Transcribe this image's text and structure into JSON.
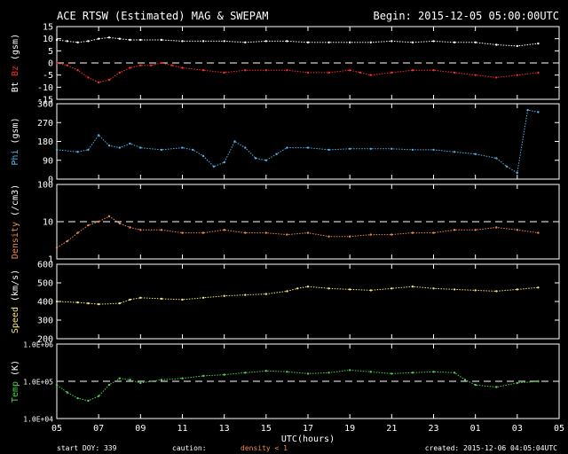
{
  "header": {
    "title": "ACE RTSW (Estimated) MAG & SWEPAM",
    "begin": "Begin: 2015-12-05 05:00:00UTC"
  },
  "footer": {
    "start": "start DOY: 339",
    "caution": "caution:",
    "caution_note": "density < 1",
    "created": "created: 2015-12-06 04:05:04UTC"
  },
  "colors": {
    "bt": "#ffffff",
    "bz": "#ff2a2a",
    "phi": "#4fb4e8",
    "density": "#f08a4b",
    "speed": "#f5e87a",
    "temp": "#4cd44c",
    "caution": "#f08a4b"
  },
  "chart_data": {
    "type": "scatter",
    "xlabel": "UTC(hours)",
    "x_ticks": [
      "05",
      "07",
      "09",
      "11",
      "13",
      "15",
      "17",
      "19",
      "21",
      "23",
      "01",
      "03",
      "05"
    ],
    "panels": [
      {
        "id": "mag",
        "ylabel": [
          {
            "text": "Bt",
            "color": "#ffffff"
          },
          {
            "text": "Bz",
            "color": "#ff2a2a"
          }
        ],
        "ylabel_unit": "(gsm)",
        "scale": "linear",
        "ylim": [
          -15,
          15
        ],
        "yticks": [
          "15",
          "10",
          "5",
          "0",
          "-5",
          "-10",
          "-15"
        ],
        "ytick_values": [
          15,
          10,
          5,
          0,
          -5,
          -10,
          -15
        ],
        "dashed_at": 0,
        "series": [
          {
            "name": "Bt",
            "color": "#ffffff",
            "x": [
              0,
              0.5,
              1,
              1.5,
              2,
              2.5,
              3,
              3.5,
              4,
              5,
              6,
              7,
              8,
              9,
              10,
              11,
              12,
              13,
              14,
              15,
              16,
              17,
              18,
              19,
              20,
              21,
              22,
              23
            ],
            "y": [
              9.5,
              9,
              8.5,
              9,
              10,
              10.5,
              10,
              9.5,
              9.5,
              9.5,
              9,
              9,
              9,
              8.5,
              9,
              9,
              8.5,
              8.5,
              8.5,
              8.5,
              9,
              8.5,
              9,
              8.5,
              8.5,
              7.5,
              7,
              8
            ]
          },
          {
            "name": "Bz",
            "color": "#ff2a2a",
            "x": [
              0,
              0.5,
              1,
              1.5,
              2,
              2.5,
              3,
              3.5,
              4,
              4.5,
              5,
              5.5,
              6,
              7,
              8,
              9,
              10,
              11,
              12,
              13,
              14,
              14.5,
              15,
              16,
              17,
              18,
              19,
              20,
              21,
              22,
              23
            ],
            "y": [
              0,
              -1,
              -3,
              -6,
              -8,
              -7,
              -4,
              -2,
              -1,
              -1,
              0,
              -1,
              -2,
              -3,
              -4,
              -3,
              -3,
              -3,
              -4,
              -4,
              -3,
              -4,
              -5,
              -4,
              -3,
              -3,
              -4,
              -5,
              -6,
              -5,
              -4
            ]
          }
        ]
      },
      {
        "id": "phi",
        "ylabel": [
          {
            "text": "Phi",
            "color": "#4fb4e8"
          }
        ],
        "ylabel_unit": "(gsm)",
        "scale": "linear",
        "ylim": [
          0,
          360
        ],
        "yticks": [
          "360",
          "270",
          "180",
          "90",
          "0"
        ],
        "ytick_values": [
          360,
          270,
          180,
          90,
          0
        ],
        "dashed_at": null,
        "series": [
          {
            "name": "Phi",
            "color": "#4fb4e8",
            "x": [
              0,
              1,
              1.5,
              2,
              2.5,
              3,
              3.5,
              4,
              5,
              6,
              6.5,
              7,
              7.5,
              8,
              8.5,
              9,
              9.5,
              10,
              10.5,
              11,
              12,
              13,
              14,
              15,
              16,
              17,
              18,
              19,
              20,
              21,
              21.5,
              22,
              22.5,
              23
            ],
            "y": [
              140,
              130,
              140,
              210,
              160,
              150,
              170,
              150,
              140,
              150,
              140,
              110,
              60,
              80,
              180,
              150,
              100,
              90,
              120,
              150,
              150,
              140,
              145,
              145,
              145,
              140,
              140,
              130,
              120,
              100,
              60,
              30,
              330,
              320
            ]
          }
        ]
      },
      {
        "id": "density",
        "ylabel": [
          {
            "text": "Density",
            "color": "#f08a4b"
          }
        ],
        "ylabel_unit": "(/cm3)",
        "scale": "log",
        "ylim": [
          1,
          100
        ],
        "yticks": [
          "100",
          "10",
          "1"
        ],
        "ytick_values": [
          100,
          10,
          1
        ],
        "dashed_at": 10,
        "series": [
          {
            "name": "Density",
            "color": "#f08a4b",
            "x": [
              0,
              0.5,
              1,
              1.5,
              2,
              2.5,
              3,
              3.5,
              4,
              5,
              6,
              7,
              8,
              9,
              10,
              11,
              12,
              13,
              14,
              15,
              16,
              17,
              18,
              19,
              20,
              21,
              22,
              23
            ],
            "y": [
              2,
              3,
              5,
              8,
              10,
              14,
              9,
              7,
              6,
              6,
              5,
              5,
              6,
              5,
              5,
              4.5,
              5,
              4,
              4,
              4.5,
              4.5,
              5,
              5,
              6,
              6,
              7,
              6,
              5
            ]
          }
        ]
      },
      {
        "id": "speed",
        "ylabel": [
          {
            "text": "Speed",
            "color": "#f5e87a"
          }
        ],
        "ylabel_unit": "(km/s)",
        "scale": "linear",
        "ylim": [
          200,
          600
        ],
        "yticks": [
          "600",
          "500",
          "400",
          "300",
          "200"
        ],
        "ytick_values": [
          600,
          500,
          400,
          300,
          200
        ],
        "dashed_at": null,
        "series": [
          {
            "name": "Speed",
            "color": "#f5e87a",
            "x": [
              0,
              1,
              1.5,
              2,
              3,
              3.5,
              4,
              5,
              6,
              7,
              8,
              9,
              10,
              11,
              11.5,
              12,
              13,
              14,
              15,
              16,
              17,
              18,
              19,
              20,
              21,
              22,
              23
            ],
            "y": [
              400,
              395,
              390,
              385,
              390,
              410,
              420,
              415,
              410,
              420,
              430,
              435,
              440,
              455,
              470,
              480,
              470,
              465,
              460,
              470,
              480,
              470,
              465,
              460,
              455,
              465,
              475
            ]
          }
        ]
      },
      {
        "id": "temp",
        "ylabel": [
          {
            "text": "Temp",
            "color": "#4cd44c"
          }
        ],
        "ylabel_unit": "(K)",
        "scale": "log",
        "ylim": [
          10000,
          1000000
        ],
        "yticks": [
          "1.0E+06",
          "1.0E+05",
          "1.0E+04"
        ],
        "ytick_values": [
          1000000,
          100000,
          10000
        ],
        "dashed_at": 100000,
        "series": [
          {
            "name": "Temp",
            "color": "#4cd44c",
            "x": [
              0,
              0.5,
              1,
              1.5,
              2,
              2.5,
              3,
              3.5,
              4,
              5,
              6,
              7,
              8,
              9,
              10,
              11,
              12,
              13,
              14,
              15,
              16,
              17,
              18,
              19,
              19.5,
              20,
              21,
              22,
              23
            ],
            "y": [
              80000,
              50000,
              35000,
              30000,
              40000,
              80000,
              120000,
              110000,
              90000,
              110000,
              120000,
              140000,
              150000,
              170000,
              190000,
              180000,
              160000,
              170000,
              200000,
              180000,
              160000,
              170000,
              180000,
              170000,
              110000,
              80000,
              70000,
              90000,
              100000
            ]
          }
        ]
      }
    ]
  }
}
